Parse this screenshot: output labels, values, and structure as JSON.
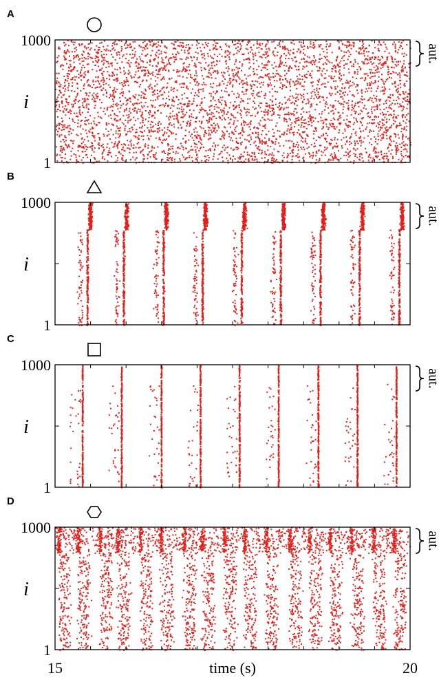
{
  "figure": {
    "x_axis": {
      "label": "time (s)",
      "min": 15,
      "max": 20,
      "tick_labels": [
        "15",
        "20"
      ]
    },
    "y_axis": {
      "label": "i",
      "min": 1,
      "max": 1000,
      "tick_labels": [
        "1",
        "1000"
      ]
    },
    "bracket_label": "aut.",
    "dot_color": "#e0201b"
  },
  "chart_data": [
    {
      "type": "scatter",
      "panel": "A",
      "marker": "circle",
      "pattern": "asynchronous",
      "spike_times": [],
      "xlabel": "",
      "ylabel": "i",
      "xlim": [
        15,
        20
      ],
      "ylim": [
        1,
        1000
      ],
      "bracket": "aut."
    },
    {
      "type": "scatter",
      "panel": "B",
      "marker": "triangle",
      "pattern": "bursts",
      "spike_times": [
        15.45,
        15.96,
        16.52,
        17.07,
        17.62,
        18.17,
        18.73,
        19.28,
        19.84
      ],
      "xlabel": "",
      "ylabel": "i",
      "xlim": [
        15,
        20
      ],
      "ylim": [
        1,
        1000
      ],
      "bracket": "aut."
    },
    {
      "type": "scatter",
      "panel": "C",
      "marker": "square",
      "pattern": "synchronous",
      "spike_times": [
        15.38,
        15.93,
        16.49,
        17.04,
        17.59,
        18.14,
        18.7,
        19.25,
        19.8
      ],
      "xlabel": "",
      "ylabel": "i",
      "xlim": [
        15,
        20
      ],
      "ylim": [
        1,
        1000
      ],
      "bracket": "aut."
    },
    {
      "type": "scatter",
      "panel": "D",
      "marker": "hexagon",
      "pattern": "mixed",
      "spike_times": [
        15.05,
        15.32,
        15.63,
        15.88,
        16.2,
        16.49,
        16.81,
        17.07,
        17.38,
        17.66,
        17.97,
        18.3,
        18.58,
        18.87,
        19.17,
        19.48,
        19.77
      ],
      "xlabel": "time (s)",
      "ylabel": "i",
      "xlim": [
        15,
        20
      ],
      "ylim": [
        1,
        1000
      ],
      "bracket": "aut."
    }
  ]
}
